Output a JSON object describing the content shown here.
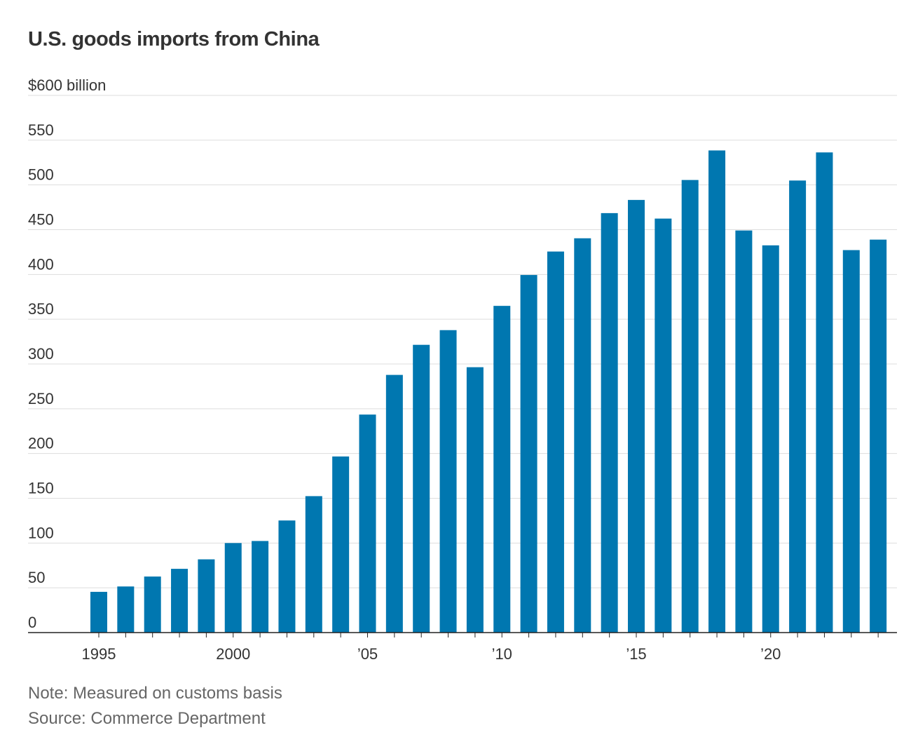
{
  "colors": {
    "bar": "#0077B0",
    "gridline": "#dddddd",
    "baseline": "#222222",
    "text": "#333333",
    "footnote": "#666666"
  },
  "chart_data": {
    "type": "bar",
    "title": "U.S. goods imports from China",
    "ylabel": "",
    "xlabel": "",
    "y_unit_label": "$600 billion",
    "ylim": [
      0,
      600
    ],
    "yticks": [
      0,
      50,
      100,
      150,
      200,
      250,
      300,
      350,
      400,
      450,
      500,
      550,
      600
    ],
    "ytick_labels": [
      "0",
      "50",
      "100",
      "150",
      "200",
      "250",
      "300",
      "350",
      "400",
      "450",
      "500",
      "550",
      "$600 billion"
    ],
    "grid": true,
    "categories": [
      "1995",
      "1996",
      "1997",
      "1998",
      "1999",
      "2000",
      "2001",
      "2002",
      "2003",
      "2004",
      "2005",
      "2006",
      "2007",
      "2008",
      "2009",
      "2010",
      "2011",
      "2012",
      "2013",
      "2014",
      "2015",
      "2016",
      "2017",
      "2018",
      "2019",
      "2020",
      "2021",
      "2022",
      "2023",
      "2024"
    ],
    "values": [
      45.5,
      51.5,
      62.6,
      71.2,
      81.8,
      100.0,
      102.3,
      125.2,
      152.4,
      196.7,
      243.5,
      287.8,
      321.4,
      337.8,
      296.4,
      364.9,
      399.4,
      425.6,
      440.4,
      468.5,
      483.2,
      462.4,
      505.5,
      538.5,
      449.1,
      432.5,
      504.9,
      536.3,
      427.2,
      438.9
    ],
    "xtick_labels": [
      {
        "category": "1995",
        "label": "1995"
      },
      {
        "category": "2000",
        "label": "2000"
      },
      {
        "category": "2005",
        "label": "’05"
      },
      {
        "category": "2010",
        "label": "’10"
      },
      {
        "category": "2015",
        "label": "’15"
      },
      {
        "category": "2020",
        "label": "’20"
      }
    ],
    "note": "Note: Measured on customs basis",
    "source": "Source: Commerce Department"
  }
}
